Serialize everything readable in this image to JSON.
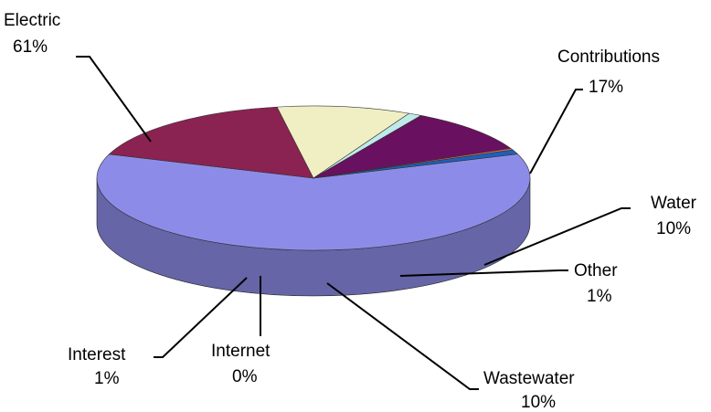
{
  "chart_data": {
    "type": "pie",
    "title": "",
    "three_d": true,
    "legend": "none",
    "slices": [
      {
        "name": "Electric",
        "value": 61,
        "label": "61%",
        "color": "#8c8ce8"
      },
      {
        "name": "Contributions",
        "value": 17,
        "label": "17%",
        "color": "#8a2252"
      },
      {
        "name": "Water",
        "value": 10,
        "label": "10%",
        "color": "#f0efc4"
      },
      {
        "name": "Other",
        "value": 1,
        "label": "1%",
        "color": "#bfeaea"
      },
      {
        "name": "Wastewater",
        "value": 10,
        "label": "10%",
        "color": "#6a1060"
      },
      {
        "name": "Internet",
        "value": 0,
        "label": "0%",
        "color": "#e07058"
      },
      {
        "name": "Interest",
        "value": 1,
        "label": "1%",
        "color": "#1f5fb8"
      }
    ]
  }
}
